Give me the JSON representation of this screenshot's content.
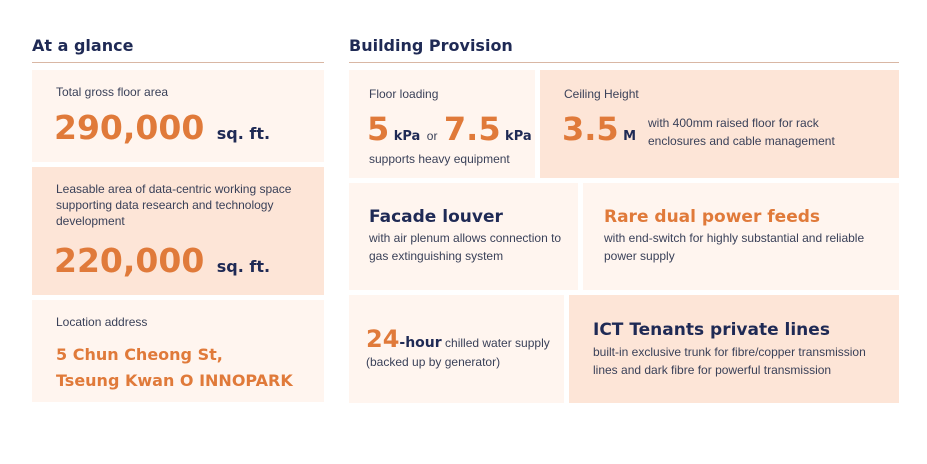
{
  "glance": {
    "title": "At a glance",
    "gfa": {
      "label": "Total gross floor area",
      "value": "290,000",
      "unit": "sq. ft."
    },
    "leasable": {
      "label_lines": [
        "Leasable area of data-centric working space",
        "supporting data research and technology",
        "development"
      ],
      "value": "220,000",
      "unit": "sq. ft."
    },
    "location": {
      "label": "Location address",
      "line1": "5 Chun Cheong St,",
      "line2": "Tseung Kwan O INNOPARK"
    }
  },
  "provision": {
    "title": "Building Provision",
    "floor_loading": {
      "label": "Floor loading",
      "v1": "5",
      "u1": "kPa",
      "or": "or",
      "v2": "7.5",
      "u2": "kPa",
      "desc": "supports heavy equipment"
    },
    "ceiling": {
      "label": "Ceiling Height",
      "value": "3.5",
      "unit": "M",
      "desc1": "with 400mm raised floor for rack",
      "desc2": "enclosures and cable management"
    },
    "facade": {
      "title": "Facade louver",
      "desc1": "with air plenum allows connection to",
      "desc2": "gas extinguishing system"
    },
    "power": {
      "title": "Rare dual power feeds",
      "desc1": "with end-switch for highly substantial and reliable",
      "desc2": "power supply"
    },
    "water": {
      "value": "24",
      "unit": "-hour",
      "desc1": " chilled water supply",
      "desc2": "(backed up by generator)"
    },
    "ict": {
      "title": "ICT Tenants private lines",
      "desc1": "built-in exclusive trunk for fibre/copper transmission",
      "desc2": "lines and dark fibre for powerful transmission"
    }
  }
}
